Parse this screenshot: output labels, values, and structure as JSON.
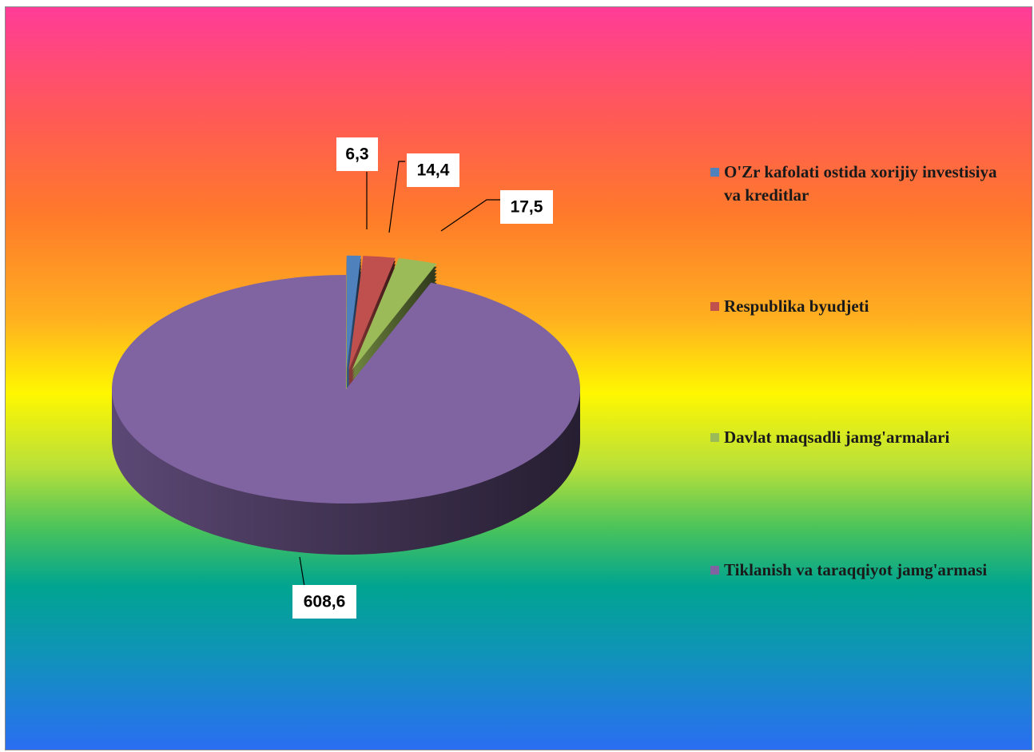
{
  "chart_data": {
    "type": "pie3d",
    "categories": [
      "O'Zr kafolati ostida xorijiy investisiya va kreditlar",
      "Respublika byudjeti",
      "Davlat maqsadli jamg'armalari",
      "Tiklanish va taraqqiyot jamg'armasi"
    ],
    "values": [
      6.3,
      14.4,
      17.5,
      608.6
    ],
    "value_labels": [
      "6,3",
      "14,4",
      "17,5",
      "608,6"
    ],
    "colors": [
      "#4f81bd",
      "#c0504d",
      "#9bbb59",
      "#8064a2"
    ],
    "legend": "right"
  }
}
